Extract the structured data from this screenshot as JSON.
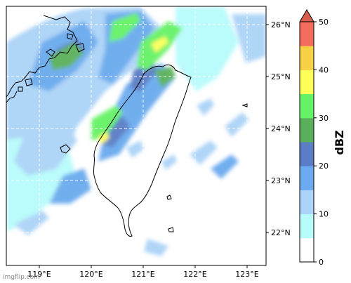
{
  "map": {
    "latitude_ticks": [
      "26°N",
      "25°N",
      "24°N",
      "23°N",
      "22°N"
    ],
    "longitude_ticks": [
      "119°E",
      "120°E",
      "121°E",
      "122°E",
      "123°E"
    ]
  },
  "colorbar": {
    "label": "dBZ",
    "tick_labels": [
      "50",
      "40",
      "30",
      "20",
      "10",
      "0"
    ],
    "colors": [
      "#ffffff",
      "#b7fbfb",
      "#abd3f7",
      "#6baaee",
      "#5a7dc5",
      "#5ab05a",
      "#66f266",
      "#ffff5a",
      "#f6d045",
      "#f36c5d"
    ],
    "extend_color": "#d95d4f"
  },
  "watermark": "imgflip.com"
}
